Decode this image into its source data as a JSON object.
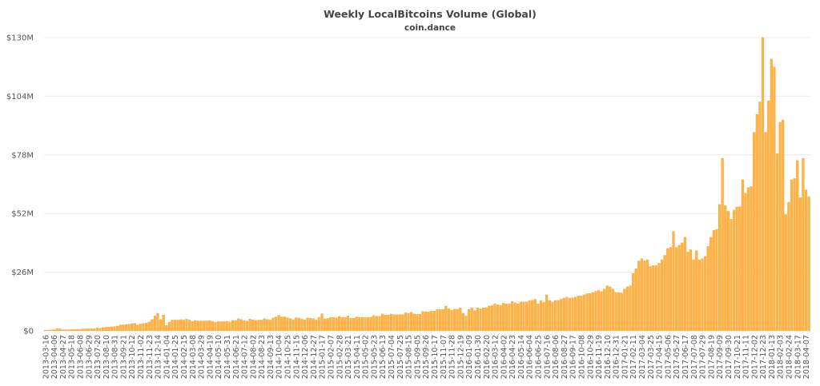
{
  "chart_data": {
    "type": "bar",
    "title": "Weekly LocalBitcoins Volume (Global)",
    "subtitle": "coin.dance",
    "xlabel": "",
    "ylabel": "",
    "ylim": [
      0,
      130
    ],
    "y_ticks": [
      "$0",
      "$26M",
      "$52M",
      "$78M",
      "$104M",
      "$130M"
    ],
    "y_tick_values": [
      0,
      26,
      52,
      78,
      104,
      130
    ],
    "y_unit": "USD millions",
    "grid": true,
    "bar_color": "#ffb347",
    "x_tick_every": 3,
    "x_tick_labels": [
      "2013-03-16",
      "2013-04-06",
      "2013-04-27",
      "2013-05-18",
      "2013-06-08",
      "2013-06-29",
      "2013-07-20",
      "2013-08-10",
      "2013-08-31",
      "2013-09-21",
      "2013-10-12",
      "2013-11-02",
      "2013-11-23",
      "2013-12-14",
      "2014-01-04",
      "2014-01-25",
      "2014-02-15",
      "2014-03-08",
      "2014-03-29",
      "2014-04-19",
      "2014-05-10",
      "2014-05-31",
      "2014-06-21",
      "2014-07-12",
      "2014-08-02",
      "2014-08-23",
      "2014-09-13",
      "2014-10-04",
      "2014-10-25",
      "2014-11-15",
      "2014-12-06",
      "2014-12-27",
      "2015-01-17",
      "2015-02-07",
      "2015-02-28",
      "2015-03-21",
      "2015-04-11",
      "2015-05-02",
      "2015-05-23",
      "2015-06-13",
      "2015-07-04",
      "2015-07-25",
      "2015-08-15",
      "2015-09-05",
      "2015-09-26",
      "2015-10-17",
      "2015-11-07",
      "2015-11-28",
      "2015-12-19",
      "2016-01-09",
      "2016-01-30",
      "2016-02-20",
      "2016-03-12",
      "2016-04-02",
      "2016-04-23",
      "2016-05-14",
      "2016-06-04",
      "2016-06-25",
      "2016-07-16",
      "2016-08-06",
      "2016-08-27",
      "2016-09-17",
      "2016-10-08",
      "2016-10-29",
      "2016-11-19",
      "2016-12-10",
      "2016-12-31",
      "2017-01-21",
      "2017-02-11",
      "2017-03-04",
      "2017-03-25",
      "2017-04-15",
      "2017-05-06",
      "2017-05-27",
      "2017-06-17",
      "2017-07-08",
      "2017-07-29",
      "2017-08-19",
      "2017-09-09",
      "2017-09-30",
      "2017-10-21",
      "2017-11-11",
      "2017-12-02",
      "2017-12-23",
      "2018-01-13",
      "2018-02-03",
      "2018-02-24",
      "2018-03-17",
      "2018-04-07"
    ],
    "values": [
      0.3,
      0.3,
      0.4,
      0.5,
      1.0,
      0.9,
      0.5,
      0.5,
      0.5,
      0.6,
      0.6,
      0.7,
      0.7,
      0.8,
      0.9,
      0.9,
      0.9,
      0.9,
      1.3,
      1.2,
      1.5,
      1.6,
      1.7,
      1.8,
      1.9,
      2.1,
      2.6,
      2.7,
      2.8,
      3.0,
      3.2,
      3.3,
      2.6,
      3.0,
      3.3,
      3.4,
      4.0,
      5.0,
      6.6,
      7.8,
      5.0,
      7.0,
      2.4,
      3.8,
      4.8,
      4.8,
      4.8,
      5.0,
      4.8,
      5.3,
      4.8,
      4.2,
      4.6,
      4.4,
      4.4,
      4.4,
      4.4,
      4.5,
      4.2,
      3.8,
      4.1,
      4.1,
      4.1,
      4.2,
      3.9,
      4.6,
      4.6,
      5.4,
      5.0,
      4.6,
      4.3,
      5.2,
      4.9,
      4.7,
      4.8,
      4.8,
      5.4,
      5.1,
      4.8,
      5.7,
      6.1,
      6.9,
      6.2,
      6.2,
      5.8,
      5.4,
      5.0,
      5.8,
      5.7,
      5.3,
      4.9,
      5.8,
      5.5,
      5.4,
      4.8,
      6.0,
      7.6,
      5.3,
      5.5,
      6.0,
      6.0,
      5.8,
      6.4,
      6.0,
      6.0,
      6.6,
      5.6,
      5.6,
      6.2,
      6.0,
      6.0,
      6.0,
      6.0,
      6.1,
      6.8,
      6.5,
      6.5,
      7.5,
      7.0,
      7.0,
      7.4,
      7.2,
      7.2,
      7.2,
      7.2,
      8.0,
      7.8,
      8.2,
      7.5,
      7.3,
      7.4,
      8.6,
      8.4,
      8.4,
      8.8,
      8.8,
      9.5,
      9.5,
      9.5,
      11.0,
      9.8,
      9.2,
      9.6,
      9.6,
      10.2,
      7.8,
      6.6,
      9.5,
      10.2,
      9.0,
      10.2,
      9.8,
      10.2,
      10.3,
      11.0,
      11.2,
      12.0,
      11.6,
      11.3,
      12.3,
      12.0,
      12.0,
      13.0,
      12.5,
      12.0,
      12.8,
      12.8,
      12.8,
      13.4,
      13.5,
      14.0,
      12.0,
      13.5,
      12.6,
      16.0,
      13.4,
      12.8,
      13.5,
      13.5,
      14.0,
      14.5,
      15.0,
      14.5,
      14.6,
      15.0,
      15.5,
      15.5,
      16.0,
      16.5,
      16.6,
      17.0,
      17.5,
      18.0,
      17.5,
      18.5,
      20.0,
      19.5,
      18.5,
      17.0,
      17.0,
      16.8,
      18.5,
      19.5,
      20.0,
      25.4,
      27.5,
      31.0,
      32.0,
      31.0,
      31.5,
      28.5,
      29.0,
      29.0,
      30.0,
      31.5,
      33.5,
      36.5,
      37.0,
      44.0,
      37.0,
      38.0,
      39.0,
      41.5,
      35.0,
      36.0,
      31.5,
      35.5,
      31.5,
      32.0,
      33.0,
      37.5,
      41.5,
      44.5,
      45.0,
      56.0,
      76.5,
      55.5,
      53.0,
      49.5,
      53.5,
      55.0,
      55.0,
      67.0,
      61.0,
      63.5,
      64.0,
      88.0,
      96.0,
      101.5,
      130.0,
      88.0,
      102.0,
      120.5,
      117.0,
      78.5,
      92.5,
      93.5,
      51.5,
      57.0,
      67.0,
      67.5,
      75.5,
      59.0,
      76.5,
      62.5,
      59.5
    ]
  }
}
